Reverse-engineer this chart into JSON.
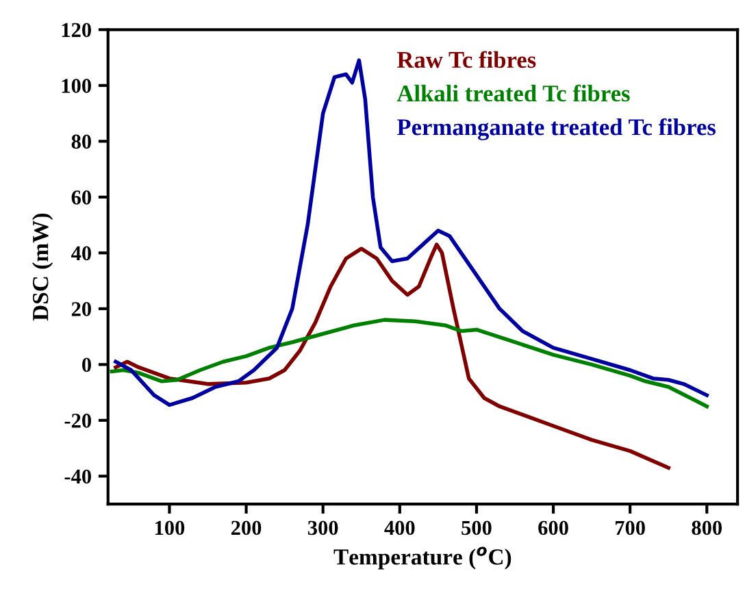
{
  "chart_data": {
    "type": "line",
    "xlabel": "Temperature ($^{o}$C)",
    "ylabel": "DSC (mW)",
    "xlim": [
      20,
      840
    ],
    "ylim": [
      -50,
      120
    ],
    "xticks": [
      100,
      200,
      300,
      400,
      500,
      600,
      700,
      800
    ],
    "yticks": [
      -40,
      -20,
      0,
      20,
      40,
      60,
      80,
      100,
      120
    ],
    "grid": false,
    "legend": "top right",
    "marker": "none",
    "line_style": "solid",
    "series": [
      {
        "name": "Raw Tc fibres",
        "color": "#800000",
        "x": [
          30,
          45,
          60,
          100,
          150,
          200,
          230,
          250,
          270,
          290,
          310,
          330,
          350,
          370,
          390,
          410,
          425,
          440,
          448,
          455,
          470,
          490,
          510,
          530,
          560,
          600,
          650,
          700,
          750
        ],
        "values": [
          -1,
          1,
          -1,
          -5,
          -7,
          -6.5,
          -5,
          -2,
          5,
          15,
          28,
          38,
          41.5,
          38,
          30,
          25,
          28,
          38,
          43,
          40,
          20,
          -5,
          -12,
          -15,
          -18,
          -22,
          -27,
          -31,
          -37
        ]
      },
      {
        "name": "Alkali treated Tc fibres",
        "color": "#008000",
        "x": [
          25,
          40,
          60,
          90,
          110,
          140,
          170,
          200,
          230,
          260,
          300,
          340,
          380,
          420,
          460,
          480,
          500,
          550,
          600,
          650,
          700,
          720,
          750,
          800
        ],
        "values": [
          -2.5,
          -2,
          -3,
          -6,
          -5.5,
          -2,
          1,
          3,
          6,
          8,
          11,
          14,
          16,
          15.5,
          14,
          12,
          12.5,
          8,
          3.5,
          0,
          -4,
          -6,
          -8,
          -15
        ]
      },
      {
        "name": "Permanganate treated Tc fibres",
        "color": "#0000a0",
        "x": [
          30,
          50,
          80,
          100,
          130,
          160,
          190,
          210,
          240,
          260,
          280,
          300,
          315,
          330,
          338,
          347,
          355,
          365,
          375,
          390,
          410,
          430,
          450,
          465,
          480,
          500,
          530,
          560,
          600,
          650,
          700,
          730,
          750,
          770,
          800
        ],
        "values": [
          1,
          -2,
          -11,
          -14.5,
          -12,
          -8,
          -6,
          -2,
          6,
          20,
          50,
          90,
          103,
          104,
          101,
          109,
          95,
          60,
          42,
          37,
          38,
          43,
          48,
          46,
          40,
          32,
          20,
          12,
          6,
          2,
          -2,
          -5,
          -5.5,
          -7,
          -11
        ]
      }
    ]
  }
}
